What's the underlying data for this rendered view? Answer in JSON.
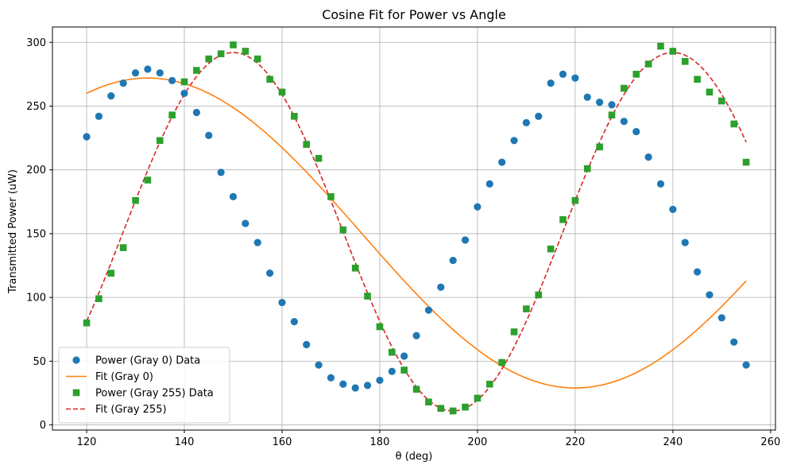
{
  "chart_data": {
    "type": "scatter",
    "title": "Cosine Fit for Power vs Angle",
    "xlabel": "θ (deg)",
    "ylabel": "Transmitted Power (uW)",
    "xlim": [
      113,
      261
    ],
    "ylim": [
      -4,
      312
    ],
    "xticks": [
      120,
      140,
      160,
      180,
      200,
      220,
      240,
      260
    ],
    "yticks": [
      0,
      50,
      100,
      150,
      200,
      250,
      300
    ],
    "grid": true,
    "legend_position": "lower-left",
    "legend_order": [
      "gray0_data",
      "gray0_fit",
      "gray255_data",
      "gray255_fit"
    ],
    "series": [
      {
        "id": "gray0_data",
        "name": "Power (Gray 0) Data",
        "kind": "scatter",
        "marker": "circle",
        "color": "#1f77b4",
        "x": [
          120,
          122.5,
          125,
          127.5,
          130,
          132.5,
          135,
          137.5,
          140,
          142.5,
          145,
          147.5,
          150,
          152.5,
          155,
          157.5,
          160,
          162.5,
          165,
          167.5,
          170,
          172.5,
          175,
          177.5,
          180,
          182.5,
          185,
          187.5,
          190,
          192.5,
          195,
          197.5,
          200,
          202.5,
          205,
          207.5,
          210,
          212.5,
          215,
          217.5,
          220,
          222.5,
          225,
          227.5,
          230,
          232.5,
          235,
          237.5,
          240,
          242.5,
          245,
          247.5,
          250,
          252.5,
          255
        ],
        "y": [
          226,
          242,
          258,
          268,
          276,
          279,
          276,
          270,
          260,
          245,
          227,
          198,
          179,
          158,
          143,
          119,
          96,
          81,
          63,
          47,
          37,
          32,
          29,
          31,
          35,
          42,
          54,
          70,
          90,
          108,
          129,
          145,
          171,
          189,
          206,
          223,
          237,
          242,
          268,
          275,
          272,
          257,
          253,
          251,
          238,
          230,
          210,
          189,
          169,
          143,
          120,
          102,
          84,
          65,
          47
        ]
      },
      {
        "id": "gray0_fit",
        "name": "Fit (Gray 0)",
        "kind": "line",
        "dash": "solid",
        "color": "#ff7f0e",
        "fit": {
          "amplitude": 121.5,
          "offset": 150.5,
          "period": 175,
          "peak_x": 132.5,
          "x_start": 120,
          "x_end": 255
        }
      },
      {
        "id": "gray255_data",
        "name": "Power (Gray 255) Data",
        "kind": "scatter",
        "marker": "square",
        "color": "#2ca02c",
        "x": [
          120,
          122.5,
          125,
          127.5,
          130,
          132.5,
          135,
          137.5,
          140,
          142.5,
          145,
          147.5,
          150,
          152.5,
          155,
          157.5,
          160,
          162.5,
          165,
          167.5,
          170,
          172.5,
          175,
          177.5,
          180,
          182.5,
          185,
          187.5,
          190,
          192.5,
          195,
          197.5,
          200,
          202.5,
          205,
          207.5,
          210,
          212.5,
          215,
          217.5,
          220,
          222.5,
          225,
          227.5,
          230,
          232.5,
          235,
          237.5,
          240,
          242.5,
          245,
          247.5,
          250,
          252.5,
          255
        ],
        "y": [
          80,
          99,
          119,
          139,
          176,
          192,
          223,
          243,
          269,
          278,
          287,
          291,
          298,
          293,
          287,
          271,
          261,
          242,
          220,
          209,
          179,
          153,
          123,
          101,
          77,
          57,
          43,
          28,
          18,
          13,
          11,
          14,
          21,
          32,
          49,
          73,
          91,
          102,
          138,
          161,
          176,
          201,
          218,
          243,
          264,
          275,
          283,
          297,
          293,
          285,
          271,
          261,
          254,
          236,
          206
        ]
      },
      {
        "id": "gray255_fit",
        "name": "Fit (Gray 255)",
        "kind": "line",
        "dash": "dashed",
        "color": "#d62728",
        "fit": {
          "amplitude": 140.5,
          "offset": 151.5,
          "period": 90,
          "peak_x": 150,
          "x_start": 120,
          "x_end": 255
        }
      }
    ]
  }
}
